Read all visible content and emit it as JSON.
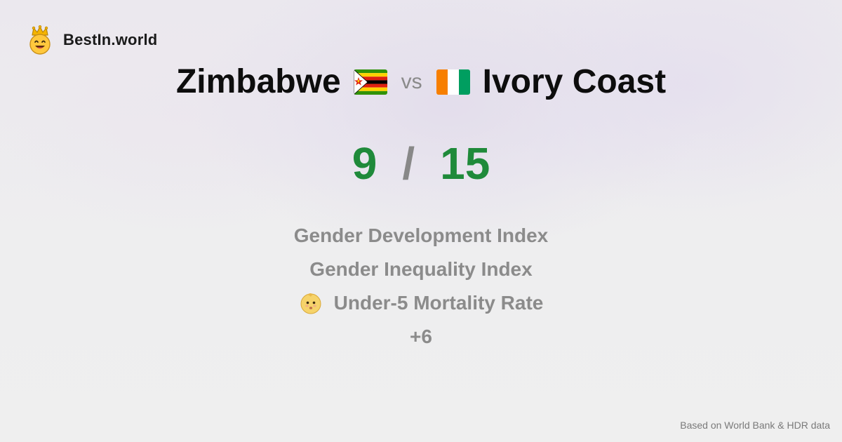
{
  "brand": {
    "name": "BestIn.world",
    "icon": "crowned-smiley-icon"
  },
  "comparison": {
    "country_a": {
      "name": "Zimbabwe",
      "flag": "zimbabwe-flag-icon"
    },
    "vs_label": "vs",
    "country_b": {
      "name": "Ivory Coast",
      "flag": "ivory-coast-flag-icon"
    }
  },
  "score": {
    "a": "9",
    "separator": "/",
    "b": "15"
  },
  "metrics": [
    {
      "label": "Gender Development Index"
    },
    {
      "label": "Gender Inequality Index"
    },
    {
      "label": "Under-5 Mortality Rate",
      "icon": "baby-face-icon"
    }
  ],
  "more_label": "+6",
  "footer": "Based on World Bank & HDR data",
  "colors": {
    "score": "#1f8a3a",
    "muted": "#8b8b8b",
    "title": "#0d0d0d"
  }
}
